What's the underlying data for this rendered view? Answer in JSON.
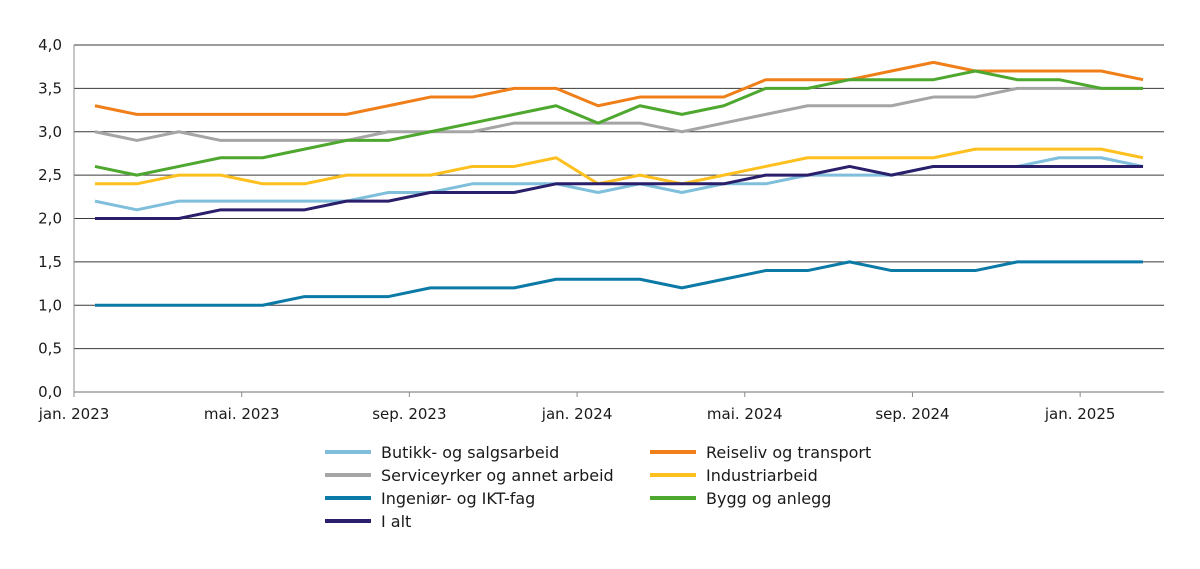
{
  "chart_data": {
    "type": "line",
    "title": "",
    "xlabel": "",
    "ylabel": "",
    "ylim": [
      0,
      4
    ],
    "yticks": [
      "0,0",
      "0,5",
      "1,0",
      "1,5",
      "2,0",
      "2,5",
      "3,0",
      "3,5",
      "4,0"
    ],
    "ytick_values": [
      0,
      0.5,
      1,
      1.5,
      2,
      2.5,
      3,
      3.5,
      4
    ],
    "grid": "horizontal",
    "legend_position": "bottom",
    "x": [
      "jan. 2023",
      "feb. 2023",
      "mar. 2023",
      "apr. 2023",
      "mai. 2023",
      "jun. 2023",
      "jul. 2023",
      "aug. 2023",
      "sep. 2023",
      "okt. 2023",
      "nov. 2023",
      "des. 2023",
      "jan. 2024",
      "feb. 2024",
      "mar. 2024",
      "apr. 2024",
      "mai. 2024",
      "jun. 2024",
      "jul. 2024",
      "aug. 2024",
      "sep. 2024",
      "okt. 2024",
      "nov. 2024",
      "des. 2024",
      "jan. 2025",
      "feb. 2025"
    ],
    "xtick_labels": [
      {
        "index": 0,
        "label": "jan. 2023"
      },
      {
        "index": 4,
        "label": "mai. 2023"
      },
      {
        "index": 8,
        "label": "sep. 2023"
      },
      {
        "index": 12,
        "label": "jan. 2024"
      },
      {
        "index": 16,
        "label": "mai. 2024"
      },
      {
        "index": 20,
        "label": "sep. 2024"
      },
      {
        "index": 24,
        "label": "jan. 2025"
      }
    ],
    "series": [
      {
        "name": "Butikk- og salgsarbeid",
        "color": "#7fbfdc",
        "values": [
          2.2,
          2.1,
          2.2,
          2.2,
          2.2,
          2.2,
          2.2,
          2.3,
          2.3,
          2.4,
          2.4,
          2.4,
          2.3,
          2.4,
          2.3,
          2.4,
          2.4,
          2.5,
          2.5,
          2.5,
          2.6,
          2.6,
          2.6,
          2.7,
          2.7,
          2.6
        ]
      },
      {
        "name": "Reiseliv og transport",
        "color": "#f07f1a",
        "values": [
          3.3,
          3.2,
          3.2,
          3.2,
          3.2,
          3.2,
          3.2,
          3.3,
          3.4,
          3.4,
          3.5,
          3.5,
          3.3,
          3.4,
          3.4,
          3.4,
          3.6,
          3.6,
          3.6,
          3.7,
          3.8,
          3.7,
          3.7,
          3.7,
          3.7,
          3.6
        ]
      },
      {
        "name": "Serviceyrker og annet arbeid",
        "color": "#a5a5a5",
        "values": [
          3.0,
          2.9,
          3.0,
          2.9,
          2.9,
          2.9,
          2.9,
          3.0,
          3.0,
          3.0,
          3.1,
          3.1,
          3.1,
          3.1,
          3.0,
          3.1,
          3.2,
          3.3,
          3.3,
          3.3,
          3.4,
          3.4,
          3.5,
          3.5,
          3.5,
          3.5
        ]
      },
      {
        "name": "Industriarbeid",
        "color": "#fdc01f",
        "values": [
          2.4,
          2.4,
          2.5,
          2.5,
          2.4,
          2.4,
          2.5,
          2.5,
          2.5,
          2.6,
          2.6,
          2.7,
          2.4,
          2.5,
          2.4,
          2.5,
          2.6,
          2.7,
          2.7,
          2.7,
          2.7,
          2.8,
          2.8,
          2.8,
          2.8,
          2.7
        ]
      },
      {
        "name": "Ingeniør- og IKT-fag",
        "color": "#0b7aa6",
        "values": [
          1.0,
          1.0,
          1.0,
          1.0,
          1.0,
          1.1,
          1.1,
          1.1,
          1.2,
          1.2,
          1.2,
          1.3,
          1.3,
          1.3,
          1.2,
          1.3,
          1.4,
          1.4,
          1.5,
          1.4,
          1.4,
          1.4,
          1.5,
          1.5,
          1.5,
          1.5
        ]
      },
      {
        "name": "Bygg og anlegg",
        "color": "#4ea72e",
        "values": [
          2.6,
          2.5,
          2.6,
          2.7,
          2.7,
          2.8,
          2.9,
          2.9,
          3.0,
          3.1,
          3.2,
          3.3,
          3.1,
          3.3,
          3.2,
          3.3,
          3.5,
          3.5,
          3.6,
          3.6,
          3.6,
          3.7,
          3.6,
          3.6,
          3.5,
          3.5
        ]
      },
      {
        "name": "I alt",
        "color": "#2a1f6b",
        "values": [
          2.0,
          2.0,
          2.0,
          2.1,
          2.1,
          2.1,
          2.2,
          2.2,
          2.3,
          2.3,
          2.3,
          2.4,
          2.4,
          2.4,
          2.4,
          2.4,
          2.5,
          2.5,
          2.6,
          2.5,
          2.6,
          2.6,
          2.6,
          2.6,
          2.6,
          2.6
        ]
      }
    ]
  }
}
